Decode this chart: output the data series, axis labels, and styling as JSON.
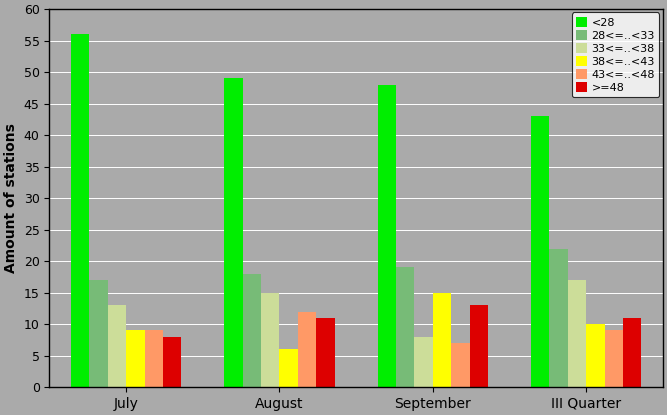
{
  "categories": [
    "July",
    "August",
    "September",
    "III Quarter"
  ],
  "series": [
    {
      "label": "<28",
      "color": "#00EE00",
      "values": [
        56,
        49,
        48,
        43
      ]
    },
    {
      "label": "28<=..<33",
      "color": "#77BB77",
      "values": [
        17,
        18,
        19,
        22
      ]
    },
    {
      "label": "33<=..<38",
      "color": "#CCDD99",
      "values": [
        13,
        15,
        8,
        17
      ]
    },
    {
      "label": "38<=..<43",
      "color": "#FFFF00",
      "values": [
        9,
        6,
        15,
        10
      ]
    },
    {
      "label": "43<=..<48",
      "color": "#FF9966",
      "values": [
        9,
        12,
        7,
        9
      ]
    },
    {
      "label": ">=48",
      "color": "#DD0000",
      "values": [
        8,
        11,
        13,
        11
      ]
    }
  ],
  "ylabel": "Amount of stations",
  "ylim": [
    0,
    60
  ],
  "yticks": [
    0,
    5,
    10,
    15,
    20,
    25,
    30,
    35,
    40,
    45,
    50,
    55,
    60
  ],
  "background_color": "#AAAAAA",
  "plot_bg_color": "#AAAAAA",
  "legend_position": "upper right",
  "bar_width": 0.12,
  "figsize": [
    6.67,
    4.15
  ],
  "dpi": 100
}
